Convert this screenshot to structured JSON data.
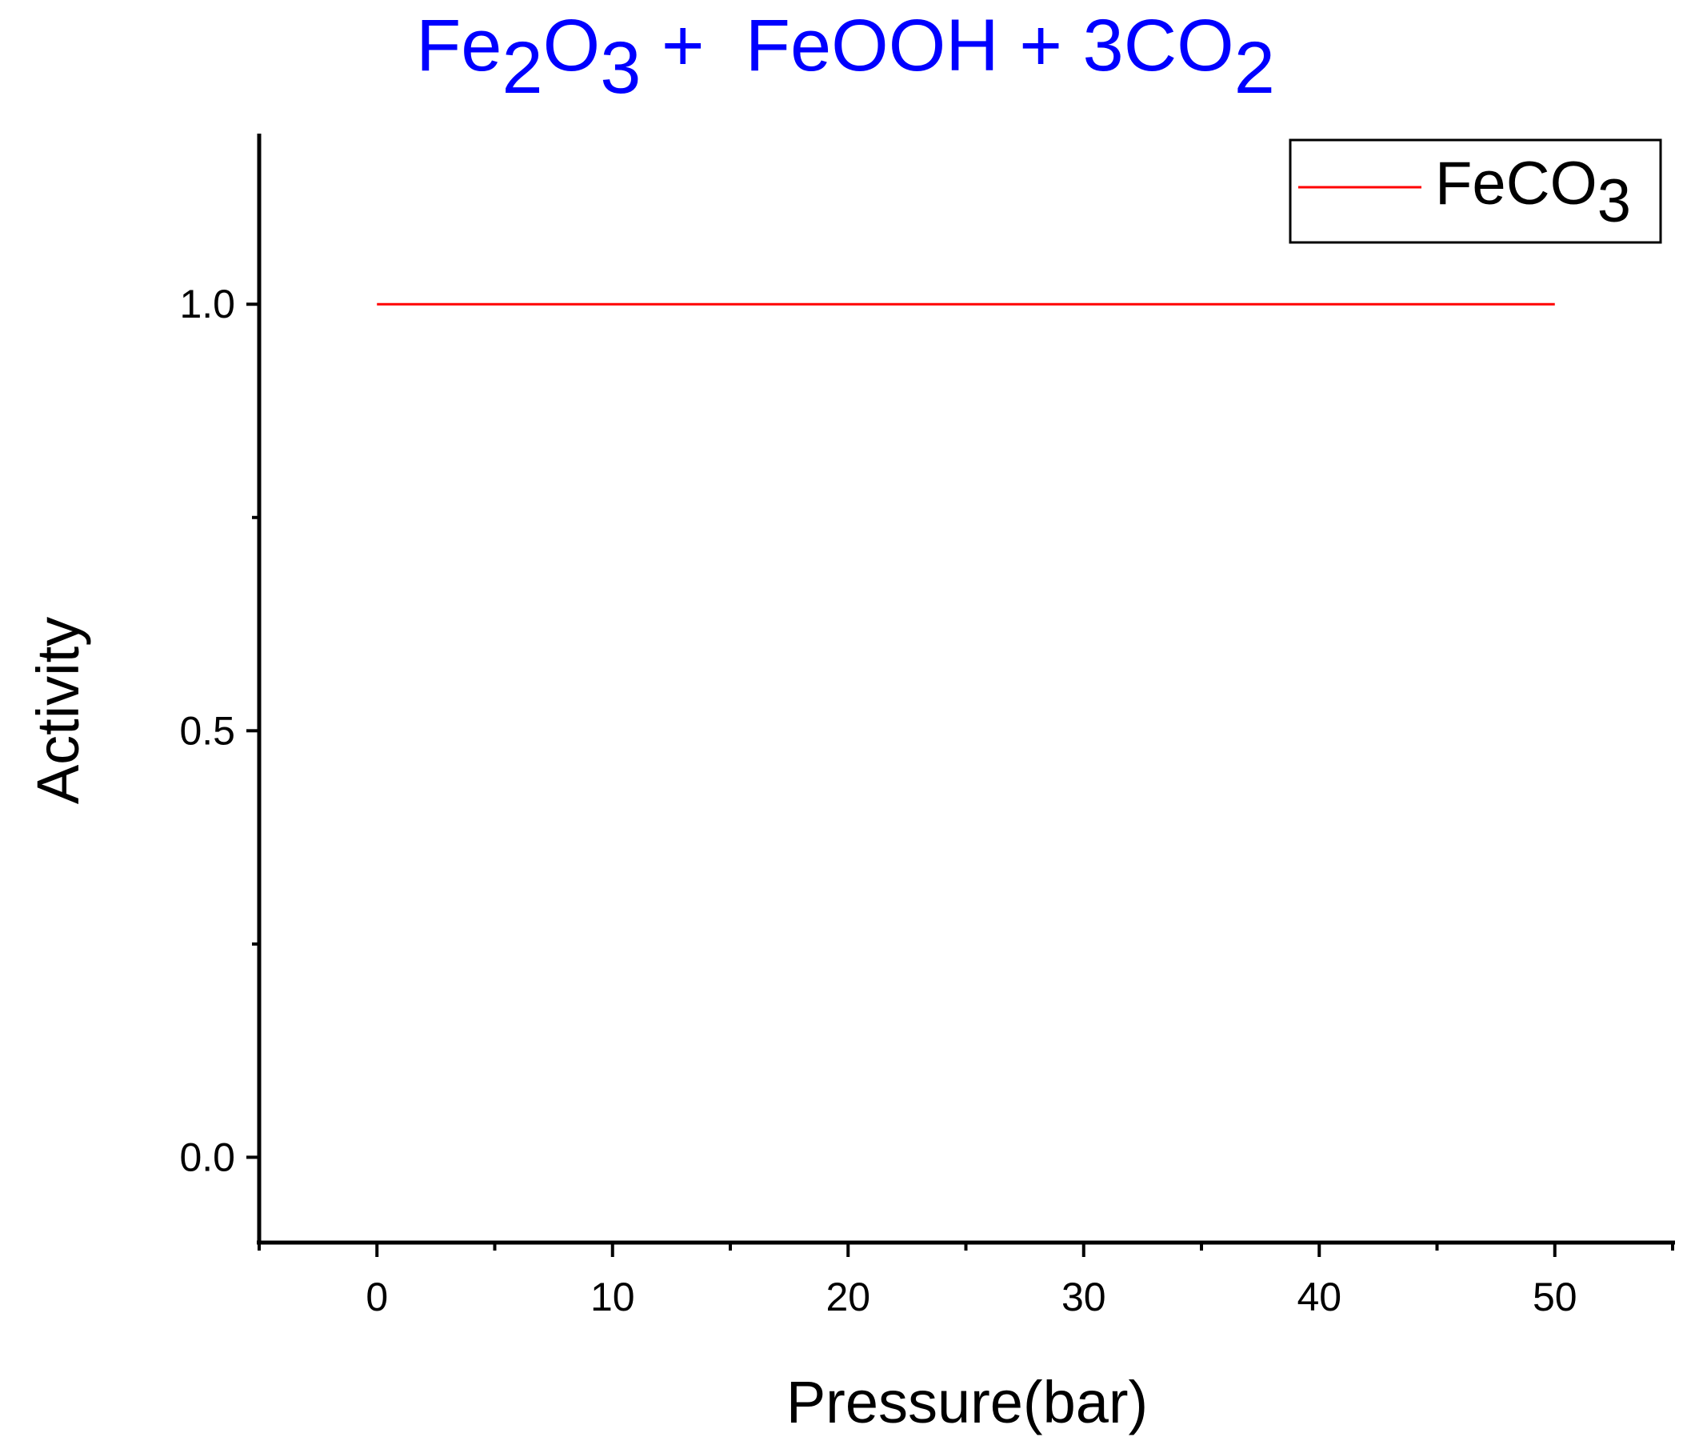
{
  "chart_data": {
    "type": "line",
    "title_parts": [
      {
        "t": "Fe",
        "sub": false
      },
      {
        "t": "2",
        "sub": true
      },
      {
        "t": "O",
        "sub": false
      },
      {
        "t": "3",
        "sub": true
      },
      {
        "t": " +  FeOOH + 3CO",
        "sub": false
      },
      {
        "t": "2",
        "sub": true
      }
    ],
    "xlabel": "Pressure(bar)",
    "ylabel": "Activity",
    "xlim": [
      -5,
      55
    ],
    "ylim": [
      -0.1,
      1.2
    ],
    "x_ticks": [
      0,
      10,
      20,
      30,
      40,
      50
    ],
    "x_minor_ticks": [
      -5,
      5,
      15,
      25,
      35,
      45,
      55
    ],
    "y_ticks": [
      0.0,
      0.5,
      1.0
    ],
    "y_tick_labels": [
      "0.0",
      "0.5",
      "1.0"
    ],
    "y_minor_ticks": [
      0.25,
      0.75
    ],
    "grid": false,
    "legend_position": "top-right",
    "series": [
      {
        "name_parts": [
          {
            "t": "FeCO",
            "sub": false
          },
          {
            "t": "3",
            "sub": true
          }
        ],
        "color": "#ff0000",
        "x": [
          0,
          50
        ],
        "y": [
          1.0,
          1.0
        ]
      }
    ]
  },
  "colors": {
    "title": "#0000ff",
    "axis": "#000000",
    "background": "#ffffff"
  }
}
